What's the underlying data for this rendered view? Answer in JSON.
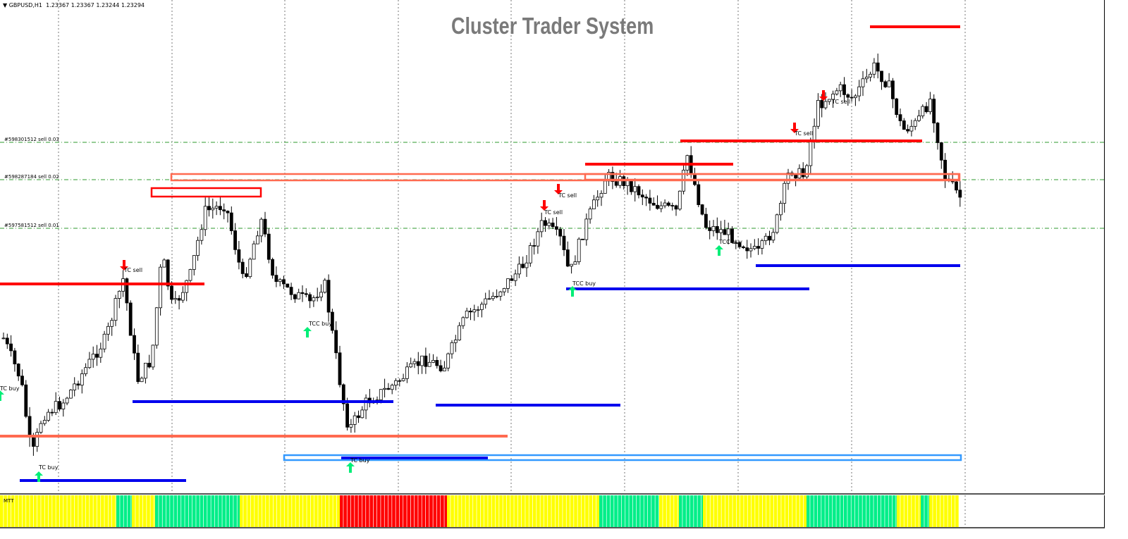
{
  "header": {
    "symbol": "GBPUSD,H1",
    "ohlc": "1.23367 1.23367 1.23244 1.23294"
  },
  "title": "Cluster Trader System",
  "orders": [
    {
      "label": "#598301512 sell 0.03"
    },
    {
      "label": "#598287184 sell 0.02"
    },
    {
      "label": "#597581512 sell 0.01"
    }
  ],
  "signals": [
    {
      "label": "TC buy",
      "type": "buy"
    },
    {
      "label": "TC buy",
      "type": "buy"
    },
    {
      "label": "TC sell",
      "type": "sell"
    },
    {
      "label": "TCC buy",
      "type": "buy"
    },
    {
      "label": "TC buy",
      "type": "buy"
    },
    {
      "label": "TC sell",
      "type": "sell"
    },
    {
      "label": "TC sell",
      "type": "sell"
    },
    {
      "label": "TCC buy",
      "type": "buy"
    },
    {
      "label": "TCC buy",
      "type": "buy"
    },
    {
      "label": "TC sell",
      "type": "sell"
    },
    {
      "label": "TC sell",
      "type": "sell"
    }
  ],
  "indicator": {
    "name": "MTT",
    "states": [
      "yellow",
      "green",
      "yellow",
      "green",
      "yellow",
      "red",
      "yellow",
      "green",
      "yellow",
      "green",
      "yellow",
      "green",
      "yellow",
      "green",
      "yellow"
    ]
  },
  "colors": {
    "resistance": "#ff0000",
    "support": "#0000ee",
    "zone_red": "#ff6a50",
    "zone_blue": "#3399ff",
    "order_line": "#2e9a2e",
    "buy_arrow": "#00ee77",
    "sell_arrow": "#ff0000",
    "yellow": "#ffff00",
    "green": "#00ee88",
    "red": "#ff0000"
  }
}
